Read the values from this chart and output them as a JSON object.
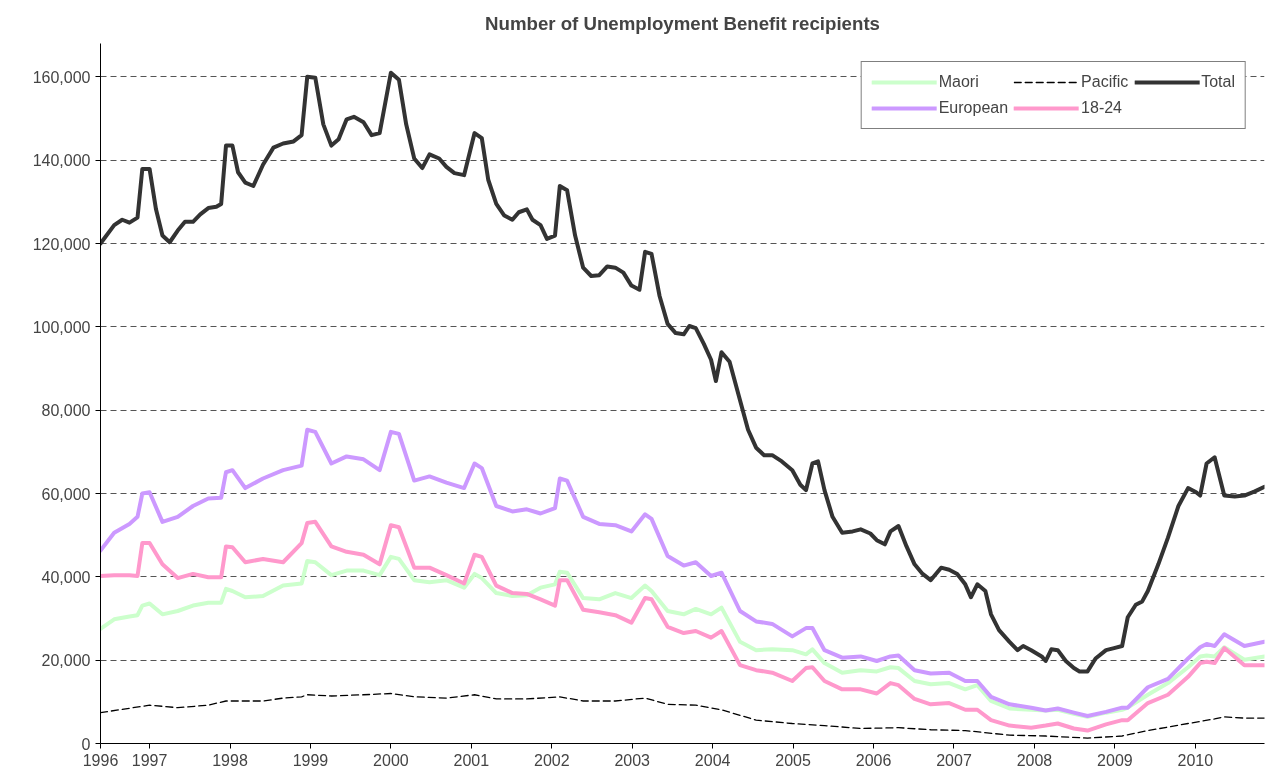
{
  "chart_data": {
    "type": "line",
    "title": "Number of Unemployment Benefit recipients",
    "xlim": [
      1996.39,
      2010.86
    ],
    "xticks": [
      {
        "value": 1996.39,
        "label": "1996"
      },
      1997,
      1998,
      1999,
      2000,
      2001,
      2002,
      2003,
      2004,
      2005,
      2006,
      2007,
      2008,
      2009,
      2010
    ],
    "ylim": [
      0,
      168000
    ],
    "yticks": [
      {
        "value": 0,
        "label": "0"
      },
      {
        "value": 20000,
        "label": "20,000"
      },
      {
        "value": 40000,
        "label": "40,000"
      },
      {
        "value": 60000,
        "label": "60,000"
      },
      {
        "value": 80000,
        "label": "80,000"
      },
      {
        "value": 100000,
        "label": "100,000"
      },
      {
        "value": 120000,
        "label": "120,000"
      },
      {
        "value": 140000,
        "label": "140,000"
      },
      {
        "value": 160000,
        "label": "160,000"
      }
    ],
    "grid": "y",
    "legend": "top right",
    "marker": "none",
    "series": [
      {
        "name": "Maori",
        "color": "#ccffcc",
        "line_style": "solid",
        "x": [
          1996.39,
          1996.56,
          1996.75,
          1996.85,
          1996.91,
          1997.0,
          1997.16,
          1997.35,
          1997.54,
          1997.73,
          1997.89,
          1997.95,
          1998.03,
          1998.19,
          1998.41,
          1998.66,
          1998.89,
          1998.96,
          1999.06,
          1999.26,
          1999.45,
          1999.66,
          1999.86,
          2000.0,
          2000.1,
          2000.29,
          2000.48,
          2000.69,
          2000.91,
          2001.04,
          2001.13,
          2001.31,
          2001.51,
          2001.69,
          2001.86,
          2002.04,
          2002.1,
          2002.19,
          2002.39,
          2002.59,
          2002.79,
          2002.99,
          2003.16,
          2003.24,
          2003.44,
          2003.64,
          2003.79,
          2003.98,
          2004.11,
          2004.34,
          2004.54,
          2004.74,
          2004.99,
          2005.16,
          2005.24,
          2005.39,
          2005.61,
          2005.84,
          2006.04,
          2006.21,
          2006.31,
          2006.51,
          2006.71,
          2006.94,
          2007.14,
          2007.29,
          2007.46,
          2007.69,
          2007.96,
          2008.14,
          2008.29,
          2008.49,
          2008.66,
          2008.89,
          2009.09,
          2009.16,
          2009.41,
          2009.66,
          2009.91,
          2010.06,
          2010.14,
          2010.24,
          2010.36,
          2010.61,
          2010.86
        ],
        "values": [
          27500,
          29800,
          30500,
          30800,
          33100,
          33600,
          31000,
          31800,
          33100,
          33800,
          33800,
          37100,
          36600,
          35100,
          35400,
          37900,
          38400,
          43800,
          43500,
          40400,
          41500,
          41500,
          40400,
          44800,
          44300,
          39200,
          38700,
          39200,
          37400,
          40700,
          39700,
          36100,
          35400,
          35600,
          37400,
          38200,
          41200,
          41000,
          34900,
          34600,
          36100,
          34900,
          37900,
          36600,
          31800,
          31000,
          32300,
          31000,
          32600,
          24400,
          22400,
          22600,
          22400,
          21400,
          22600,
          19300,
          17000,
          17600,
          17300,
          18300,
          18100,
          15000,
          14200,
          14500,
          13000,
          14000,
          10200,
          8400,
          8100,
          7900,
          8100,
          7100,
          6400,
          7400,
          8100,
          8600,
          11700,
          14500,
          18300,
          20900,
          21100,
          20900,
          23100,
          20100,
          20900
        ]
      },
      {
        "name": "European",
        "color": "#cc99ff",
        "line_style": "solid",
        "x": [
          1996.39,
          1996.56,
          1996.75,
          1996.85,
          1996.91,
          1997.0,
          1997.16,
          1997.35,
          1997.54,
          1997.73,
          1997.89,
          1997.95,
          1998.03,
          1998.19,
          1998.41,
          1998.66,
          1998.89,
          1998.96,
          1999.06,
          1999.26,
          1999.45,
          1999.66,
          1999.86,
          2000.0,
          2000.1,
          2000.29,
          2000.48,
          2000.69,
          2000.91,
          2001.04,
          2001.13,
          2001.31,
          2001.51,
          2001.69,
          2001.86,
          2002.04,
          2002.1,
          2002.19,
          2002.39,
          2002.59,
          2002.79,
          2002.99,
          2003.16,
          2003.24,
          2003.44,
          2003.64,
          2003.79,
          2003.98,
          2004.11,
          2004.34,
          2004.54,
          2004.74,
          2004.99,
          2005.16,
          2005.24,
          2005.39,
          2005.61,
          2005.84,
          2006.04,
          2006.21,
          2006.31,
          2006.51,
          2006.71,
          2006.94,
          2007.14,
          2007.29,
          2007.46,
          2007.69,
          2007.96,
          2008.14,
          2008.29,
          2008.49,
          2008.66,
          2008.89,
          2009.09,
          2009.16,
          2009.41,
          2009.66,
          2009.91,
          2010.06,
          2010.14,
          2010.24,
          2010.36,
          2010.61,
          2010.86
        ],
        "values": [
          46300,
          50600,
          52700,
          54400,
          60000,
          60300,
          53200,
          54400,
          57000,
          58800,
          59000,
          65100,
          65600,
          61300,
          63600,
          65600,
          66700,
          75300,
          74800,
          67200,
          68900,
          68200,
          65600,
          74800,
          74300,
          63100,
          64100,
          62600,
          61300,
          67200,
          66100,
          57000,
          55700,
          56200,
          55200,
          56500,
          63600,
          63100,
          54400,
          52700,
          52400,
          50900,
          55000,
          53900,
          45000,
          42700,
          43500,
          40200,
          41000,
          31800,
          29300,
          28700,
          25700,
          27700,
          27700,
          22400,
          20600,
          20900,
          19800,
          20900,
          21100,
          17600,
          16800,
          17000,
          15000,
          15000,
          11200,
          9400,
          8600,
          7900,
          8400,
          7400,
          6600,
          7600,
          8600,
          8600,
          13500,
          15500,
          20400,
          23100,
          23900,
          23400,
          26200,
          23400,
          24400
        ]
      },
      {
        "name": "Pacific",
        "color": "#000000",
        "line_style": "dashed",
        "x": [
          1996.39,
          1997.0,
          1997.35,
          1997.73,
          1997.95,
          1998.41,
          1998.66,
          1998.89,
          1998.96,
          1999.26,
          1999.66,
          2000.0,
          2000.29,
          2000.69,
          2001.04,
          2001.31,
          2001.69,
          2002.1,
          2002.39,
          2002.79,
          2003.16,
          2003.44,
          2003.79,
          2004.11,
          2004.54,
          2004.99,
          2005.39,
          2005.84,
          2006.31,
          2006.71,
          2007.14,
          2007.69,
          2008.14,
          2008.66,
          2009.09,
          2009.41,
          2009.91,
          2010.24,
          2010.36,
          2010.61,
          2010.86
        ],
        "values": [
          7400,
          9200,
          8600,
          9200,
          10200,
          10200,
          10900,
          11200,
          11700,
          11400,
          11700,
          12000,
          11200,
          10900,
          11700,
          10700,
          10700,
          11200,
          10200,
          10200,
          10900,
          9400,
          9200,
          8100,
          5600,
          4800,
          4300,
          3600,
          3800,
          3300,
          3100,
          2000,
          1800,
          1300,
          1800,
          3100,
          4800,
          5900,
          6400,
          6100,
          6100
        ]
      },
      {
        "name": "18-24",
        "color": "#ff99cc",
        "line_style": "solid",
        "x": [
          1996.39,
          1996.56,
          1996.75,
          1996.85,
          1996.91,
          1997.0,
          1997.16,
          1997.35,
          1997.54,
          1997.73,
          1997.89,
          1997.95,
          1998.03,
          1998.19,
          1998.41,
          1998.66,
          1998.89,
          1998.96,
          1999.06,
          1999.26,
          1999.45,
          1999.66,
          1999.86,
          2000.0,
          2000.1,
          2000.29,
          2000.48,
          2000.69,
          2000.91,
          2001.04,
          2001.13,
          2001.31,
          2001.51,
          2001.69,
          2001.86,
          2002.04,
          2002.1,
          2002.19,
          2002.39,
          2002.59,
          2002.79,
          2002.99,
          2003.16,
          2003.24,
          2003.44,
          2003.64,
          2003.79,
          2003.98,
          2004.11,
          2004.34,
          2004.54,
          2004.74,
          2004.99,
          2005.16,
          2005.24,
          2005.39,
          2005.61,
          2005.84,
          2006.04,
          2006.21,
          2006.31,
          2006.51,
          2006.71,
          2006.94,
          2007.14,
          2007.29,
          2007.46,
          2007.69,
          2007.96,
          2008.14,
          2008.29,
          2008.49,
          2008.66,
          2008.89,
          2009.09,
          2009.16,
          2009.41,
          2009.66,
          2009.91,
          2010.06,
          2010.14,
          2010.24,
          2010.36,
          2010.61,
          2010.86
        ],
        "values": [
          40200,
          40400,
          40400,
          40200,
          48100,
          48100,
          43000,
          39700,
          40700,
          39900,
          39900,
          47300,
          47100,
          43500,
          44300,
          43500,
          48100,
          52900,
          53200,
          47300,
          46000,
          45300,
          43000,
          52400,
          51900,
          42200,
          42200,
          40400,
          38400,
          45300,
          44800,
          37900,
          36100,
          35900,
          34600,
          33100,
          39200,
          39200,
          32100,
          31500,
          30800,
          29000,
          34900,
          34600,
          28000,
          26500,
          27000,
          25400,
          27000,
          18800,
          17600,
          17000,
          15000,
          18100,
          18300,
          15000,
          13000,
          13000,
          12000,
          14500,
          14000,
          10700,
          9400,
          9700,
          8100,
          8100,
          5600,
          4300,
          3800,
          4300,
          4800,
          3600,
          3100,
          4600,
          5600,
          5600,
          9700,
          11700,
          16000,
          19300,
          19600,
          19300,
          22900,
          18800,
          18800
        ]
      },
      {
        "name": "Total",
        "color": "#333333",
        "line_style": "solid",
        "x": [
          1996.39,
          1996.56,
          1996.66,
          1996.75,
          1996.85,
          1996.91,
          1997.0,
          1997.08,
          1997.16,
          1997.25,
          1997.35,
          1997.44,
          1997.54,
          1997.63,
          1997.73,
          1997.83,
          1997.89,
          1997.95,
          1998.03,
          1998.1,
          1998.19,
          1998.29,
          1998.41,
          1998.54,
          1998.66,
          1998.79,
          1998.89,
          1998.96,
          1999.06,
          1999.16,
          1999.26,
          1999.35,
          1999.45,
          1999.54,
          1999.66,
          1999.76,
          1999.86,
          2000.0,
          2000.1,
          2000.19,
          2000.29,
          2000.39,
          2000.48,
          2000.6,
          2000.69,
          2000.79,
          2000.91,
          2001.04,
          2001.13,
          2001.21,
          2001.31,
          2001.41,
          2001.51,
          2001.59,
          2001.69,
          2001.76,
          2001.86,
          2001.94,
          2002.04,
          2002.1,
          2002.19,
          2002.29,
          2002.39,
          2002.49,
          2002.59,
          2002.69,
          2002.79,
          2002.89,
          2002.99,
          2003.09,
          2003.16,
          2003.24,
          2003.34,
          2003.44,
          2003.54,
          2003.64,
          2003.71,
          2003.79,
          2003.89,
          2003.98,
          2004.04,
          2004.11,
          2004.21,
          2004.34,
          2004.44,
          2004.54,
          2004.64,
          2004.74,
          2004.86,
          2004.99,
          2005.09,
          2005.16,
          2005.24,
          2005.31,
          2005.39,
          2005.49,
          2005.61,
          2005.74,
          2005.84,
          2005.96,
          2006.04,
          2006.14,
          2006.21,
          2006.31,
          2006.41,
          2006.51,
          2006.61,
          2006.71,
          2006.84,
          2006.94,
          2007.04,
          2007.14,
          2007.21,
          2007.29,
          2007.39,
          2007.46,
          2007.56,
          2007.69,
          2007.79,
          2007.86,
          2007.96,
          2008.09,
          2008.14,
          2008.21,
          2008.29,
          2008.39,
          2008.49,
          2008.56,
          2008.66,
          2008.76,
          2008.89,
          2008.99,
          2009.09,
          2009.16,
          2009.26,
          2009.34,
          2009.41,
          2009.54,
          2009.66,
          2009.79,
          2009.91,
          2010.01,
          2010.06,
          2010.14,
          2010.24,
          2010.36,
          2010.49,
          2010.61,
          2010.74,
          2010.86
        ],
        "values": [
          120000,
          124400,
          125700,
          125000,
          126200,
          137900,
          137900,
          128200,
          121900,
          120300,
          123100,
          125200,
          125200,
          127000,
          128500,
          128800,
          129500,
          143500,
          143500,
          137100,
          134600,
          133800,
          138900,
          143000,
          144000,
          144500,
          146000,
          160000,
          159800,
          148600,
          143500,
          145000,
          149800,
          150400,
          149100,
          146000,
          146500,
          161000,
          159300,
          148600,
          140400,
          138100,
          141400,
          140400,
          138400,
          136900,
          136400,
          146500,
          145300,
          135300,
          129500,
          126700,
          125700,
          127500,
          128200,
          125700,
          124400,
          121100,
          121900,
          133800,
          132800,
          121900,
          114200,
          112200,
          112400,
          114500,
          114200,
          113000,
          109900,
          108900,
          118000,
          117500,
          107400,
          100700,
          98500,
          98200,
          100200,
          99700,
          95900,
          92100,
          87000,
          93900,
          91600,
          82400,
          75300,
          71000,
          69200,
          69200,
          67700,
          65600,
          62100,
          60800,
          67200,
          67700,
          60800,
          54400,
          50600,
          50900,
          51400,
          50400,
          48800,
          47800,
          50900,
          52200,
          47300,
          43000,
          40700,
          39200,
          42200,
          41700,
          40700,
          38200,
          35100,
          38200,
          36600,
          31000,
          27200,
          24400,
          22400,
          23400,
          22400,
          20900,
          19800,
          22600,
          22400,
          19800,
          18100,
          17300,
          17300,
          20400,
          22400,
          22900,
          23400,
          30300,
          33300,
          34100,
          36600,
          43000,
          49400,
          57000,
          61300,
          60300,
          59500,
          67200,
          68700,
          59500,
          59300,
          59500,
          60500,
          61600
        ]
      }
    ]
  }
}
